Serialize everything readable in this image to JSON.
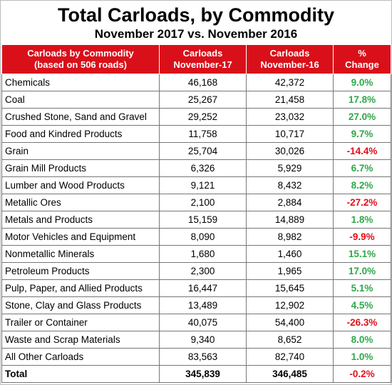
{
  "title": "Total Carloads, by Commodity",
  "subtitle": "November 2017 vs. November 2016",
  "table": {
    "header": [
      [
        "Carloads by Commodity",
        "(based on 506 roads)"
      ],
      [
        "Carloads",
        "November-17"
      ],
      [
        "Carloads",
        "November-16"
      ],
      [
        "%",
        "Change"
      ]
    ],
    "rows": [
      [
        "Chemicals",
        "46,168",
        "42,372",
        "9.0%"
      ],
      [
        "Coal",
        "25,267",
        "21,458",
        "17.8%"
      ],
      [
        "Crushed Stone, Sand and Gravel",
        "29,252",
        "23,032",
        "27.0%"
      ],
      [
        "Food and Kindred Products",
        "11,758",
        "10,717",
        "9.7%"
      ],
      [
        "Grain",
        "25,704",
        "30,026",
        "-14.4%"
      ],
      [
        "Grain Mill Products",
        "6,326",
        "5,929",
        "6.7%"
      ],
      [
        "Lumber and Wood Products",
        "9,121",
        "8,432",
        "8.2%"
      ],
      [
        "Metallic Ores",
        "2,100",
        "2,884",
        "-27.2%"
      ],
      [
        "Metals and Products",
        "15,159",
        "14,889",
        "1.8%"
      ],
      [
        "Motor Vehicles and Equipment",
        "8,090",
        "8,982",
        "-9.9%"
      ],
      [
        "Nonmetallic Minerals",
        "1,680",
        "1,460",
        "15.1%"
      ],
      [
        "Petroleum Products",
        "2,300",
        "1,965",
        "17.0%"
      ],
      [
        "Pulp, Paper, and Allied Products",
        "16,447",
        "15,645",
        "5.1%"
      ],
      [
        "Stone, Clay and Glass Products",
        "13,489",
        "12,902",
        "4.5%"
      ],
      [
        "Trailer or Container",
        "40,075",
        "54,400",
        "-26.3%"
      ],
      [
        "Waste and Scrap Materials",
        "9,340",
        "8,652",
        "8.0%"
      ],
      [
        "All Other Carloads",
        "83,563",
        "82,740",
        "1.0%"
      ]
    ],
    "total": [
      "Total",
      "345,839",
      "346,485",
      "-0.2%"
    ]
  }
}
